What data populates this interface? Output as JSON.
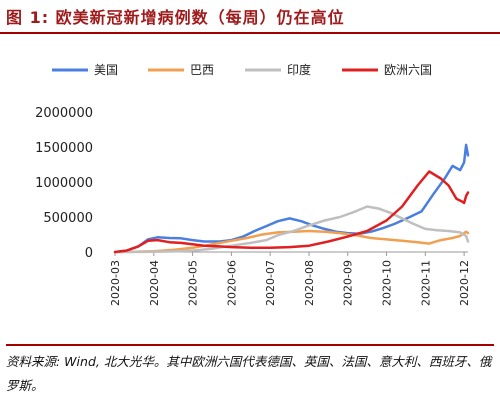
{
  "header": {
    "title": "图 1: 欧美新冠新增病例数（每周）仍在高位"
  },
  "footer": {
    "source": "资料来源: Wind, 北大光华。其中欧洲六国代表德国、英国、法国、意大利、西班牙、俄罗斯。"
  },
  "colors": {
    "title": "#9f1b1b",
    "rule": "#a30000"
  },
  "chart_data": {
    "type": "line",
    "title": "",
    "xlabel": "",
    "ylabel": "",
    "ylim": [
      0,
      2000000
    ],
    "yticks": [
      "2000000",
      "1500000",
      "1000000",
      "500000",
      "0"
    ],
    "ytick_values": [
      2000000,
      1500000,
      1000000,
      500000,
      0
    ],
    "xtick_labels": [
      "2020-03",
      "2020-04",
      "2020-05",
      "2020-06",
      "2020-07",
      "2020-08",
      "2020-09",
      "2020-10",
      "2020-11",
      "2020-12"
    ],
    "x_range": [
      0,
      9.1
    ],
    "grid": false,
    "legend_position": "top",
    "series": [
      {
        "name": "美国",
        "color": "#4a7fe0",
        "points": [
          [
            0,
            0
          ],
          [
            0.3,
            20000
          ],
          [
            0.6,
            80000
          ],
          [
            0.85,
            180000
          ],
          [
            1.1,
            210000
          ],
          [
            1.4,
            200000
          ],
          [
            1.7,
            195000
          ],
          [
            2.0,
            170000
          ],
          [
            2.3,
            150000
          ],
          [
            2.7,
            150000
          ],
          [
            3.0,
            170000
          ],
          [
            3.3,
            220000
          ],
          [
            3.6,
            300000
          ],
          [
            3.9,
            370000
          ],
          [
            4.2,
            440000
          ],
          [
            4.5,
            480000
          ],
          [
            4.8,
            440000
          ],
          [
            5.1,
            380000
          ],
          [
            5.4,
            330000
          ],
          [
            5.7,
            290000
          ],
          [
            6.0,
            270000
          ],
          [
            6.3,
            260000
          ],
          [
            6.6,
            290000
          ],
          [
            6.9,
            340000
          ],
          [
            7.2,
            400000
          ],
          [
            7.6,
            500000
          ],
          [
            7.9,
            580000
          ],
          [
            8.2,
            820000
          ],
          [
            8.5,
            1050000
          ],
          [
            8.7,
            1230000
          ],
          [
            8.9,
            1170000
          ],
          [
            9.0,
            1280000
          ],
          [
            9.05,
            1530000
          ],
          [
            9.1,
            1380000
          ]
        ]
      },
      {
        "name": "巴西",
        "color": "#f0a050",
        "points": [
          [
            0,
            0
          ],
          [
            0.5,
            5000
          ],
          [
            1.0,
            10000
          ],
          [
            1.5,
            30000
          ],
          [
            2.0,
            60000
          ],
          [
            2.5,
            110000
          ],
          [
            3.0,
            160000
          ],
          [
            3.4,
            200000
          ],
          [
            3.8,
            250000
          ],
          [
            4.2,
            280000
          ],
          [
            4.6,
            290000
          ],
          [
            5.0,
            300000
          ],
          [
            5.4,
            290000
          ],
          [
            5.8,
            270000
          ],
          [
            6.2,
            240000
          ],
          [
            6.6,
            200000
          ],
          [
            7.0,
            180000
          ],
          [
            7.4,
            160000
          ],
          [
            7.8,
            140000
          ],
          [
            8.1,
            120000
          ],
          [
            8.4,
            170000
          ],
          [
            8.7,
            200000
          ],
          [
            8.9,
            230000
          ],
          [
            9.05,
            290000
          ],
          [
            9.1,
            270000
          ]
        ]
      },
      {
        "name": "印度",
        "color": "#bfbfbf",
        "points": [
          [
            0,
            0
          ],
          [
            0.8,
            2000
          ],
          [
            1.5,
            8000
          ],
          [
            2.0,
            20000
          ],
          [
            2.5,
            45000
          ],
          [
            3.0,
            90000
          ],
          [
            3.5,
            130000
          ],
          [
            3.9,
            170000
          ],
          [
            4.2,
            240000
          ],
          [
            4.6,
            300000
          ],
          [
            5.0,
            380000
          ],
          [
            5.4,
            450000
          ],
          [
            5.8,
            500000
          ],
          [
            6.2,
            580000
          ],
          [
            6.5,
            650000
          ],
          [
            6.8,
            620000
          ],
          [
            7.1,
            560000
          ],
          [
            7.4,
            480000
          ],
          [
            7.7,
            400000
          ],
          [
            8.0,
            330000
          ],
          [
            8.3,
            310000
          ],
          [
            8.6,
            300000
          ],
          [
            8.9,
            280000
          ],
          [
            9.05,
            230000
          ],
          [
            9.1,
            150000
          ]
        ]
      },
      {
        "name": "欧洲六国",
        "color": "#e02020",
        "points": [
          [
            0,
            0
          ],
          [
            0.3,
            20000
          ],
          [
            0.6,
            80000
          ],
          [
            0.85,
            160000
          ],
          [
            1.1,
            170000
          ],
          [
            1.4,
            140000
          ],
          [
            1.7,
            130000
          ],
          [
            2.0,
            110000
          ],
          [
            2.3,
            90000
          ],
          [
            2.7,
            80000
          ],
          [
            3.0,
            70000
          ],
          [
            3.5,
            60000
          ],
          [
            4.0,
            60000
          ],
          [
            4.5,
            70000
          ],
          [
            5.0,
            90000
          ],
          [
            5.5,
            150000
          ],
          [
            6.0,
            220000
          ],
          [
            6.5,
            300000
          ],
          [
            7.0,
            450000
          ],
          [
            7.4,
            650000
          ],
          [
            7.8,
            950000
          ],
          [
            8.1,
            1150000
          ],
          [
            8.4,
            1050000
          ],
          [
            8.6,
            950000
          ],
          [
            8.8,
            760000
          ],
          [
            8.95,
            720000
          ],
          [
            9.0,
            700000
          ],
          [
            9.05,
            800000
          ],
          [
            9.1,
            850000
          ]
        ]
      }
    ]
  }
}
